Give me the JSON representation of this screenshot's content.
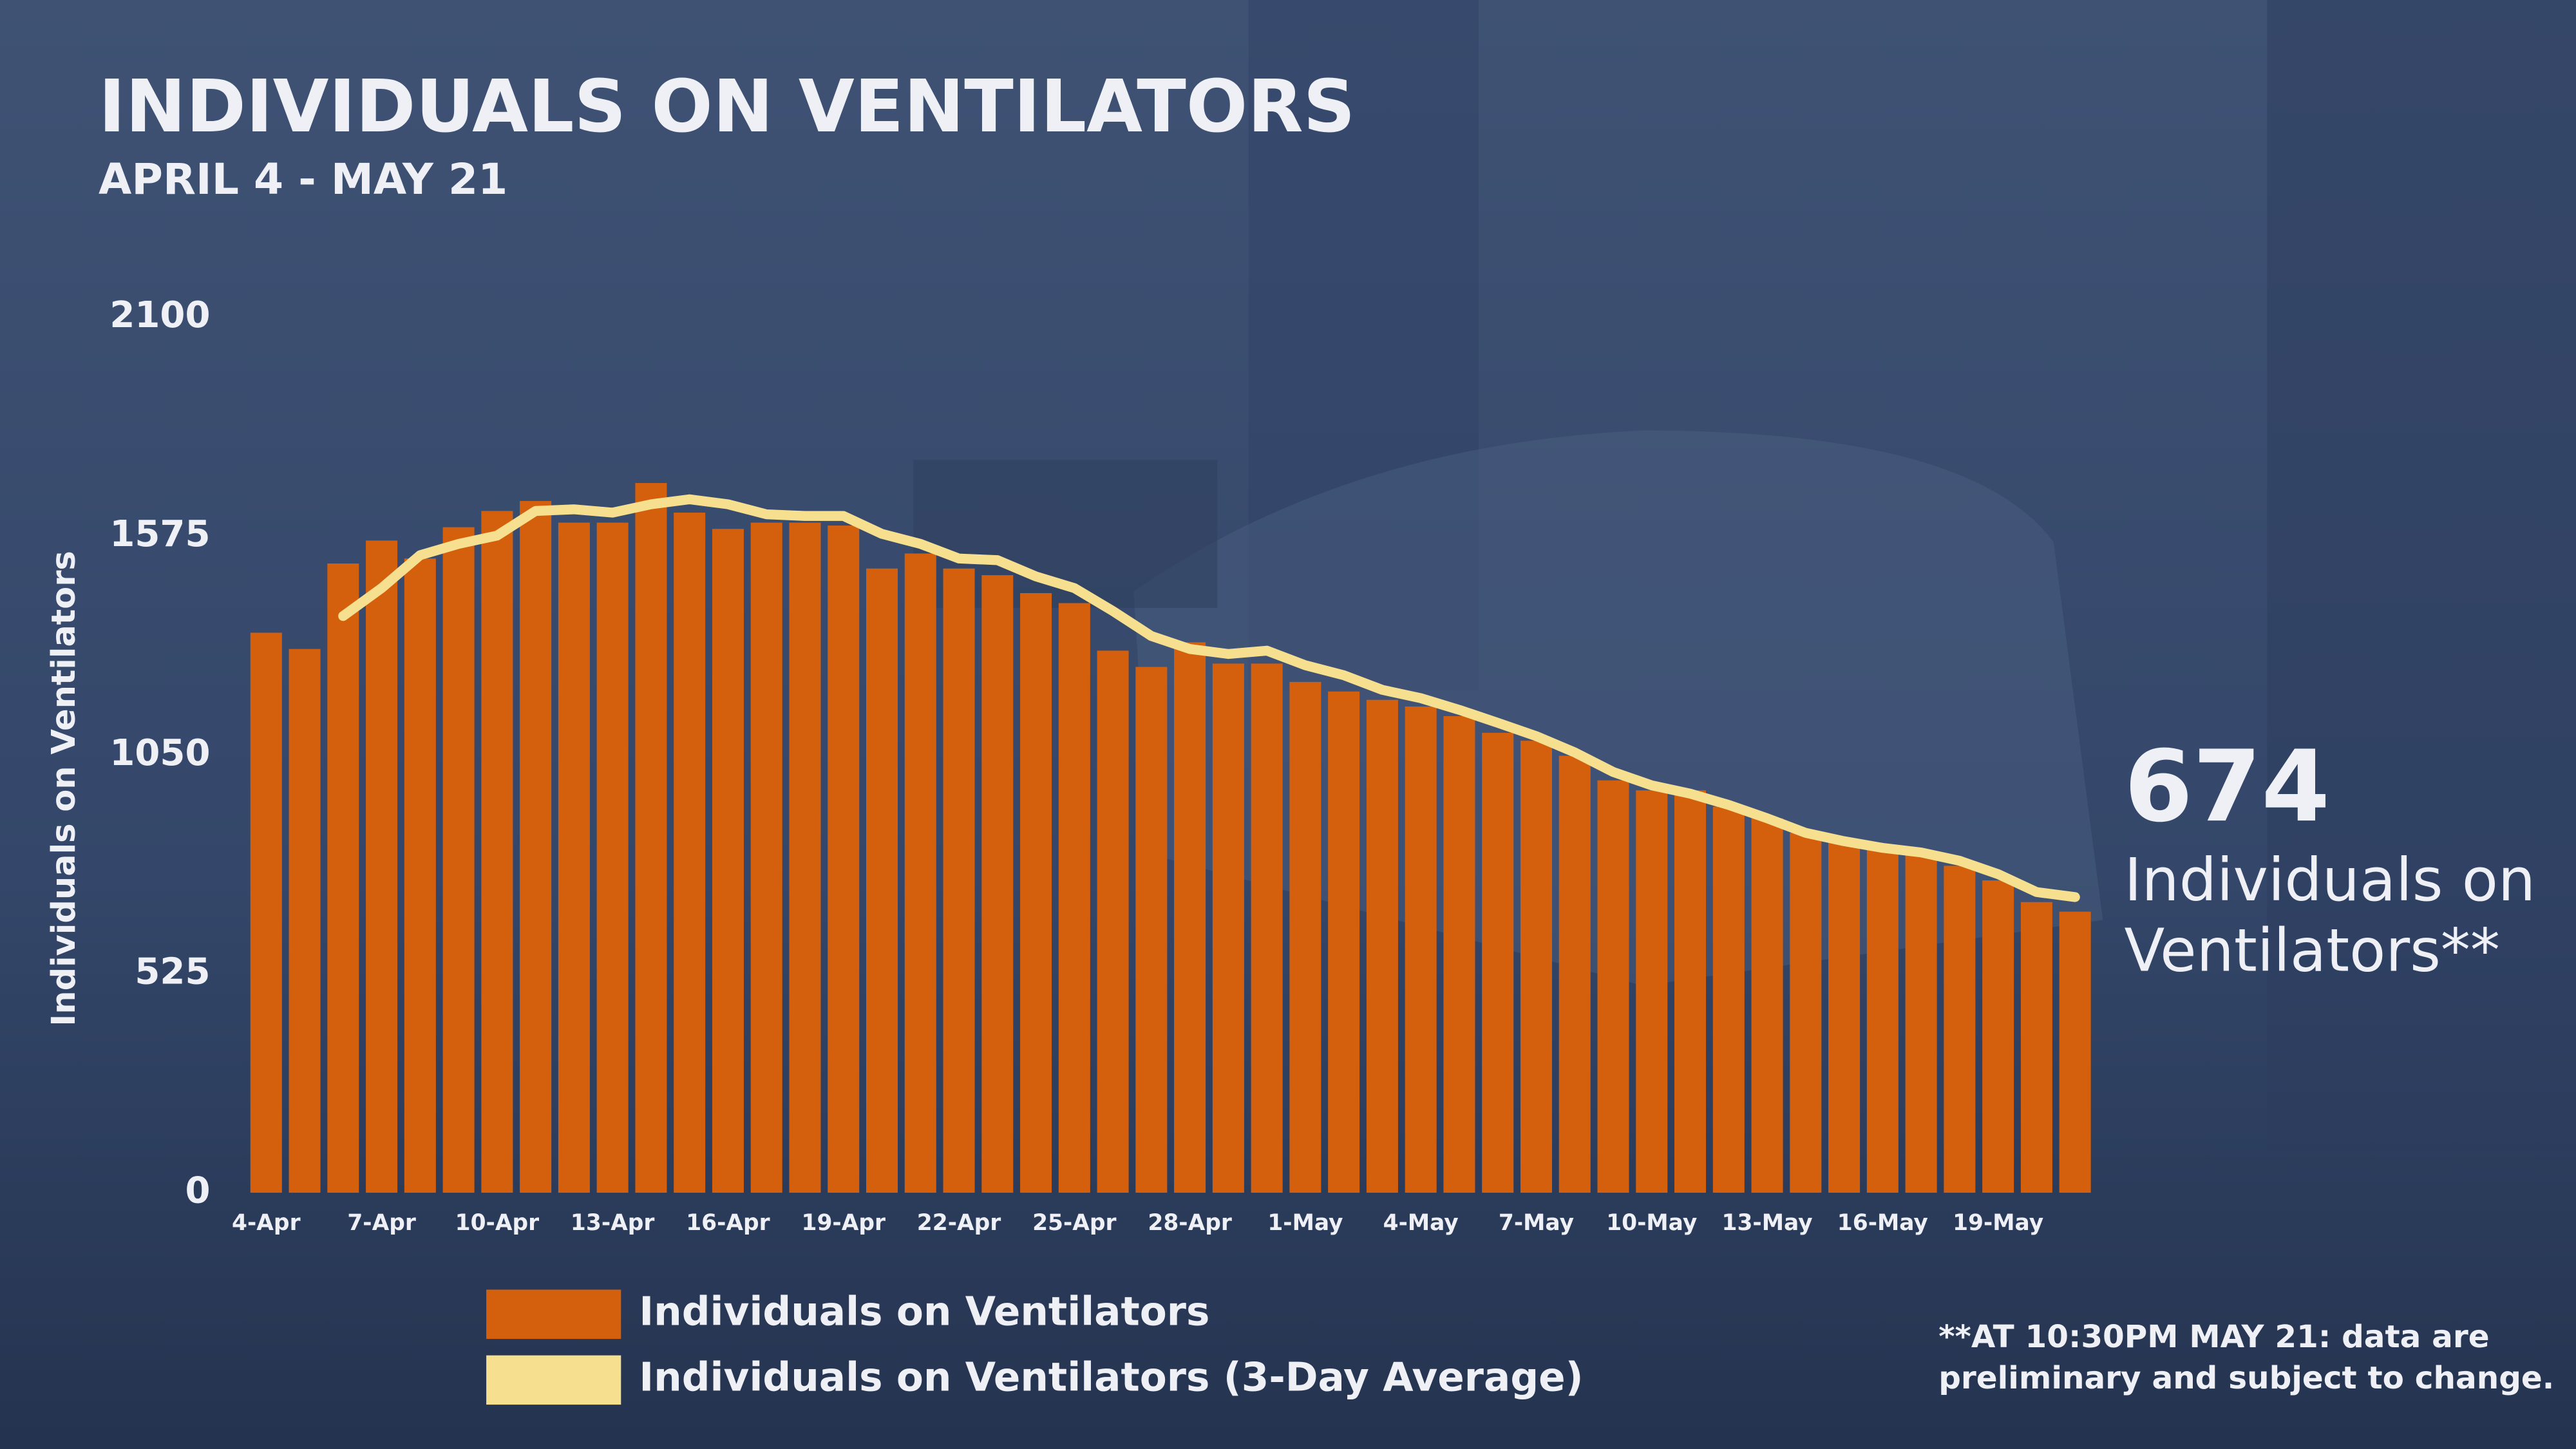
{
  "chart_data": {
    "type": "bar",
    "title": "INDIVIDUALS ON VENTILATORS",
    "subtitle": "APRIL 4 - MAY 21",
    "y_label": "Individuals on Ventilators",
    "categories": [
      "4-Apr",
      null,
      null,
      "7-Apr",
      null,
      null,
      "10-Apr",
      null,
      null,
      "13-Apr",
      null,
      null,
      "16-Apr",
      null,
      null,
      "19-Apr",
      null,
      null,
      "22-Apr",
      null,
      null,
      "25-Apr",
      null,
      null,
      "28-Apr",
      null,
      null,
      "1-May",
      null,
      null,
      "4-May",
      null,
      null,
      "7-May",
      null,
      null,
      "10-May",
      null,
      null,
      "13-May",
      null,
      null,
      "16-May",
      null,
      null,
      "19-May",
      null,
      null
    ],
    "series": [
      {
        "name": "Individuals on Ventilators",
        "type": "bar",
        "color": "#d4600e",
        "values": [
          1343,
          1304,
          1509,
          1564,
          1521,
          1596,
          1635,
          1659,
          1607,
          1607,
          1702,
          1631,
          1592,
          1607,
          1607,
          1600,
          1497,
          1533,
          1497,
          1481,
          1438,
          1414,
          1300,
          1261,
          1320,
          1269,
          1269,
          1225,
          1202,
          1182,
          1166,
          1143,
          1103,
          1084,
          1048,
          989,
          965,
          965,
          926,
          898,
          863,
          843,
          827,
          816,
          784,
          749,
          697,
          674
        ]
      },
      {
        "name": "Individuals on Ventilators (3-Day Average)",
        "type": "line",
        "color": "#f6e08f",
        "values": [
          null,
          null,
          1383,
          1450,
          1529,
          1556,
          1576,
          1635,
          1639,
          1631,
          1651,
          1663,
          1651,
          1627,
          1623,
          1623,
          1580,
          1556,
          1521,
          1517,
          1478,
          1450,
          1395,
          1335,
          1304,
          1292,
          1300,
          1265,
          1241,
          1206,
          1186,
          1158,
          1127,
          1095,
          1056,
          1009,
          977,
          957,
          930,
          898,
          863,
          843,
          827,
          816,
          796,
          764,
          721,
          709
        ]
      }
    ],
    "ylim": [
      0,
      2100
    ],
    "yticks": [
      0,
      525,
      1050,
      1575,
      2100
    ],
    "callout": {
      "value": 674,
      "label_lines": [
        "Individuals on",
        "Ventilators**"
      ]
    },
    "footnote": [
      "**AT 10:30PM MAY 21: data are",
      "preliminary and subject to change."
    ]
  }
}
